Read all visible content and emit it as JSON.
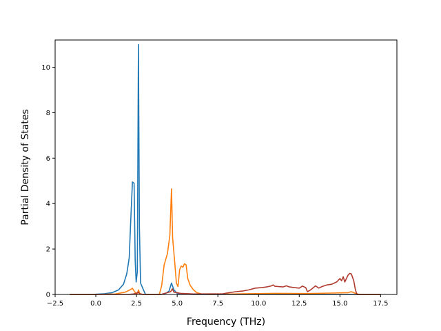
{
  "chart_data": {
    "type": "line",
    "xlabel": "Frequency (THz)",
    "ylabel": "Partial Density of States",
    "xlim": [
      -2.5,
      18.5
    ],
    "ylim": [
      0,
      11.2
    ],
    "grid": false,
    "x_ticks": [
      {
        "value": -2.5,
        "label": "−2.5"
      },
      {
        "value": 0.0,
        "label": "0.0"
      },
      {
        "value": 2.5,
        "label": "2.5"
      },
      {
        "value": 5.0,
        "label": "5.0"
      },
      {
        "value": 7.5,
        "label": "7.5"
      },
      {
        "value": 10.0,
        "label": "10.0"
      },
      {
        "value": 12.5,
        "label": "12.5"
      },
      {
        "value": 15.0,
        "label": "15.0"
      },
      {
        "value": 17.5,
        "label": "17.5"
      }
    ],
    "y_ticks": [
      {
        "value": 0,
        "label": "0"
      },
      {
        "value": 2,
        "label": "2"
      },
      {
        "value": 4,
        "label": "4"
      },
      {
        "value": 6,
        "label": "6"
      },
      {
        "value": 8,
        "label": "8"
      },
      {
        "value": 10,
        "label": "10"
      }
    ],
    "series": [
      {
        "color": "#1f77b4",
        "points": [
          [
            -1.6,
            0
          ],
          [
            -0.5,
            0
          ],
          [
            0,
            0.01
          ],
          [
            0.5,
            0.03
          ],
          [
            1.0,
            0.08
          ],
          [
            1.4,
            0.2
          ],
          [
            1.7,
            0.45
          ],
          [
            1.9,
            0.9
          ],
          [
            2.05,
            1.6
          ],
          [
            2.15,
            3.3
          ],
          [
            2.25,
            4.95
          ],
          [
            2.35,
            4.9
          ],
          [
            2.42,
            1.5
          ],
          [
            2.48,
            0.55
          ],
          [
            2.55,
            1.0
          ],
          [
            2.62,
            11.0
          ],
          [
            2.68,
            3.0
          ],
          [
            2.75,
            0.5
          ],
          [
            2.9,
            0.25
          ],
          [
            3.05,
            0.0
          ],
          [
            4.0,
            0.0
          ],
          [
            4.3,
            0.05
          ],
          [
            4.5,
            0.15
          ],
          [
            4.65,
            0.5
          ],
          [
            4.8,
            0.2
          ],
          [
            5.0,
            0.05
          ],
          [
            5.3,
            0.02
          ],
          [
            6.0,
            0.0
          ],
          [
            17.5,
            0.0
          ]
        ]
      },
      {
        "color": "#ff7f0e",
        "points": [
          [
            -1.6,
            0
          ],
          [
            0,
            0
          ],
          [
            1.2,
            0.02
          ],
          [
            1.8,
            0.1
          ],
          [
            2.1,
            0.2
          ],
          [
            2.25,
            0.27
          ],
          [
            2.4,
            0.1
          ],
          [
            2.55,
            0.03
          ],
          [
            2.62,
            0.2
          ],
          [
            2.7,
            0.05
          ],
          [
            2.85,
            0.0
          ],
          [
            3.9,
            0.0
          ],
          [
            4.05,
            0.4
          ],
          [
            4.2,
            1.3
          ],
          [
            4.4,
            1.8
          ],
          [
            4.55,
            2.6
          ],
          [
            4.65,
            4.65
          ],
          [
            4.72,
            2.5
          ],
          [
            4.85,
            1.4
          ],
          [
            4.95,
            0.5
          ],
          [
            5.05,
            0.35
          ],
          [
            5.15,
            1.1
          ],
          [
            5.25,
            1.25
          ],
          [
            5.35,
            1.2
          ],
          [
            5.45,
            1.35
          ],
          [
            5.55,
            1.3
          ],
          [
            5.65,
            0.7
          ],
          [
            5.8,
            0.4
          ],
          [
            6.0,
            0.2
          ],
          [
            6.2,
            0.08
          ],
          [
            6.5,
            0.02
          ],
          [
            7.0,
            0.0
          ],
          [
            9.0,
            0.03
          ],
          [
            11.0,
            0.05
          ],
          [
            13.0,
            0.04
          ],
          [
            14.5,
            0.06
          ],
          [
            15.5,
            0.08
          ],
          [
            15.7,
            0.12
          ],
          [
            15.9,
            0.06
          ],
          [
            16.2,
            0.0
          ],
          [
            17.5,
            0.0
          ]
        ]
      },
      {
        "color": "#b03a2e",
        "points": [
          [
            -1.6,
            0
          ],
          [
            2.0,
            0
          ],
          [
            2.3,
            0.02
          ],
          [
            2.5,
            0.05
          ],
          [
            2.6,
            0.1
          ],
          [
            2.7,
            0.02
          ],
          [
            3.0,
            0.0
          ],
          [
            4.0,
            0.0
          ],
          [
            4.4,
            0.08
          ],
          [
            4.6,
            0.12
          ],
          [
            4.7,
            0.25
          ],
          [
            4.8,
            0.1
          ],
          [
            5.2,
            0.05
          ],
          [
            6.0,
            0.02
          ],
          [
            7.8,
            0.03
          ],
          [
            8.2,
            0.08
          ],
          [
            8.6,
            0.12
          ],
          [
            9.0,
            0.15
          ],
          [
            9.4,
            0.2
          ],
          [
            9.8,
            0.28
          ],
          [
            10.2,
            0.3
          ],
          [
            10.5,
            0.33
          ],
          [
            10.8,
            0.38
          ],
          [
            10.9,
            0.42
          ],
          [
            11.0,
            0.36
          ],
          [
            11.2,
            0.35
          ],
          [
            11.5,
            0.33
          ],
          [
            11.7,
            0.38
          ],
          [
            11.9,
            0.33
          ],
          [
            12.2,
            0.3
          ],
          [
            12.5,
            0.28
          ],
          [
            12.7,
            0.37
          ],
          [
            12.9,
            0.3
          ],
          [
            13.0,
            0.12
          ],
          [
            13.2,
            0.2
          ],
          [
            13.5,
            0.38
          ],
          [
            13.7,
            0.28
          ],
          [
            13.9,
            0.35
          ],
          [
            14.2,
            0.42
          ],
          [
            14.5,
            0.45
          ],
          [
            14.8,
            0.55
          ],
          [
            15.0,
            0.7
          ],
          [
            15.1,
            0.6
          ],
          [
            15.2,
            0.78
          ],
          [
            15.3,
            0.55
          ],
          [
            15.5,
            0.85
          ],
          [
            15.6,
            0.93
          ],
          [
            15.7,
            0.9
          ],
          [
            15.85,
            0.6
          ],
          [
            15.95,
            0.2
          ],
          [
            16.05,
            0.0
          ],
          [
            17.5,
            0.0
          ]
        ]
      }
    ]
  }
}
